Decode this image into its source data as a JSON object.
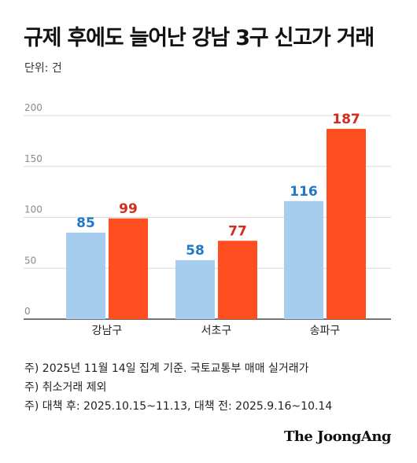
{
  "title": "규제 후에도 늘어난 강남 3구 신고가 거래",
  "unit_label": "단위: 건",
  "colors": {
    "before": "#a6cdee",
    "after": "#ff4e1f",
    "before_label": "#1f78c8",
    "after_label": "#d42b1e",
    "grid": "#d9d9d9",
    "axis": "#222222"
  },
  "chart_data": {
    "type": "bar",
    "categories": [
      "강남구",
      "서초구",
      "송파구"
    ],
    "series": [
      {
        "values": [
          85,
          58,
          116
        ]
      },
      {
        "values": [
          99,
          77,
          187
        ]
      }
    ],
    "ylim": [
      0,
      200
    ],
    "yticks": [
      "0",
      "50",
      "100",
      "150",
      "200"
    ],
    "grid": true
  },
  "notes": [
    "주) 2025년 11월 14일 집계 기준. 국토교통부 매매 실거래가",
    "주) 취소거래 제외",
    "주) 대책 후: 2025.10.15~11.13, 대책 전: 2025.9.16~10.14"
  ],
  "source_logo": "The JoongAng"
}
